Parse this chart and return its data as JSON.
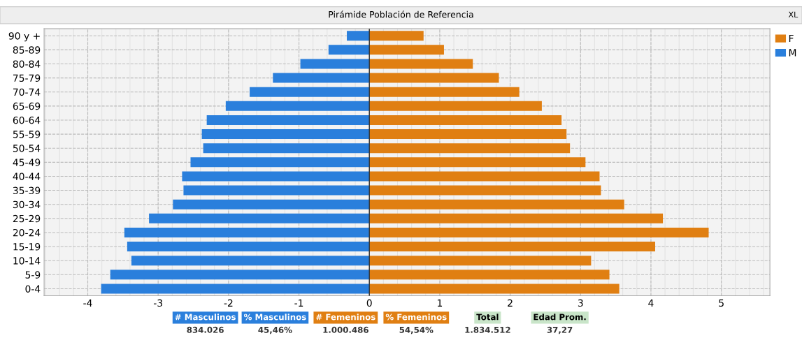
{
  "chart_data": {
    "type": "bar",
    "orientation": "horizontal",
    "title": "Pirámide Población de Referencia",
    "categories": [
      "90 y +",
      "85-89",
      "80-84",
      "75-79",
      "70-74",
      "65-69",
      "60-64",
      "55-59",
      "50-54",
      "45-49",
      "40-44",
      "35-39",
      "30-34",
      "25-29",
      "20-24",
      "15-19",
      "10-14",
      "5-9",
      "0-4"
    ],
    "series": [
      {
        "name": "F",
        "color": "#e07f12",
        "values": [
          0.77,
          1.06,
          1.47,
          1.84,
          2.13,
          2.45,
          2.73,
          2.8,
          2.85,
          3.07,
          3.27,
          3.29,
          3.62,
          4.17,
          4.82,
          4.06,
          3.15,
          3.41,
          3.55
        ]
      },
      {
        "name": "M",
        "color": "#2a7fdc",
        "values": [
          -0.32,
          -0.58,
          -0.98,
          -1.37,
          -1.7,
          -2.04,
          -2.31,
          -2.38,
          -2.36,
          -2.54,
          -2.66,
          -2.64,
          -2.79,
          -3.13,
          -3.48,
          -3.44,
          -3.38,
          -3.68,
          -3.81
        ]
      }
    ],
    "xlim": [
      -4.62,
      5.69
    ],
    "xticks": [
      -4,
      -3,
      -2,
      -1,
      0,
      1,
      2,
      3,
      4,
      5
    ],
    "grid": true,
    "legend": "top right",
    "stacked": true,
    "annotations": [
      "# Masculinos",
      "834.026",
      "% Masculinos",
      "45,46%",
      "# Femeninos",
      "1.000.486",
      "% Femeninos",
      "54,54%",
      "Total",
      "1.834.512",
      "Edad Prom.",
      "37,27",
      "XL"
    ]
  }
}
